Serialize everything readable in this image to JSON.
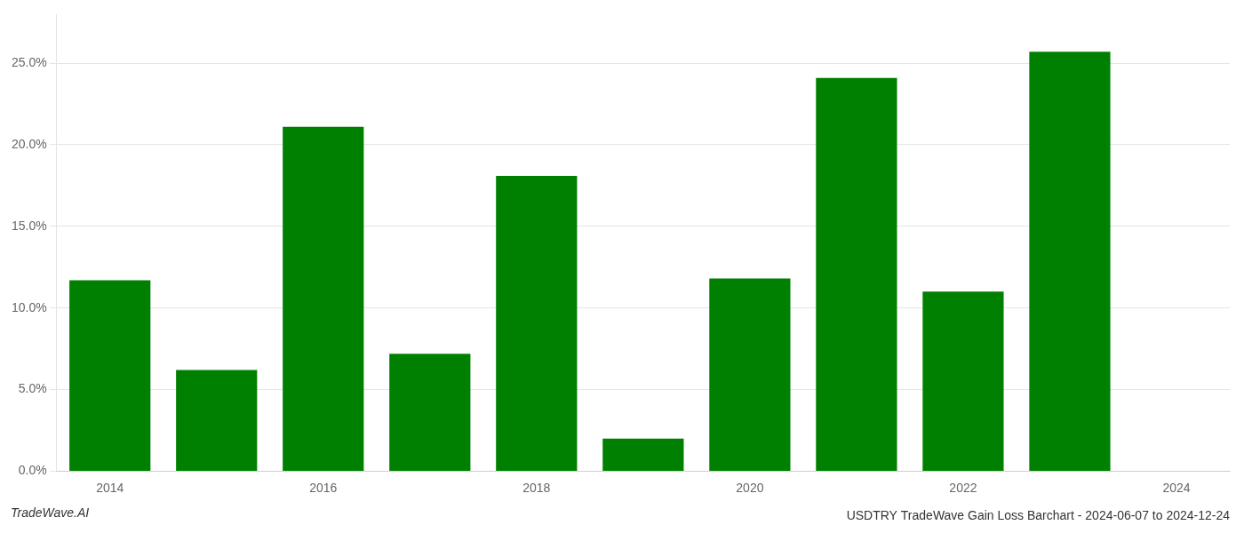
{
  "chart_data": {
    "type": "bar",
    "title": "USDTRY TradeWave Gain Loss Barchart - 2024-06-07 to 2024-12-24",
    "annotations": [
      "TradeWave.AI"
    ],
    "categories": [
      "2014",
      null,
      "2016",
      null,
      "2018",
      null,
      "2020",
      null,
      "2022",
      null,
      "2024"
    ],
    "values": [
      0.117,
      0.062,
      0.211,
      0.072,
      0.181,
      0.02,
      0.118,
      0.241,
      0.11,
      0.257,
      null
    ],
    "color": "#008000",
    "ylim": [
      0,
      0.28
    ],
    "yticks": [
      {
        "value": 0.0,
        "label": "0.0%"
      },
      {
        "value": 0.05,
        "label": "5.0%"
      },
      {
        "value": 0.1,
        "label": "10.0%"
      },
      {
        "value": 0.15,
        "label": "15.0%"
      },
      {
        "value": 0.2,
        "label": "20.0%"
      },
      {
        "value": 0.25,
        "label": "25.0%"
      }
    ],
    "grid": true
  }
}
